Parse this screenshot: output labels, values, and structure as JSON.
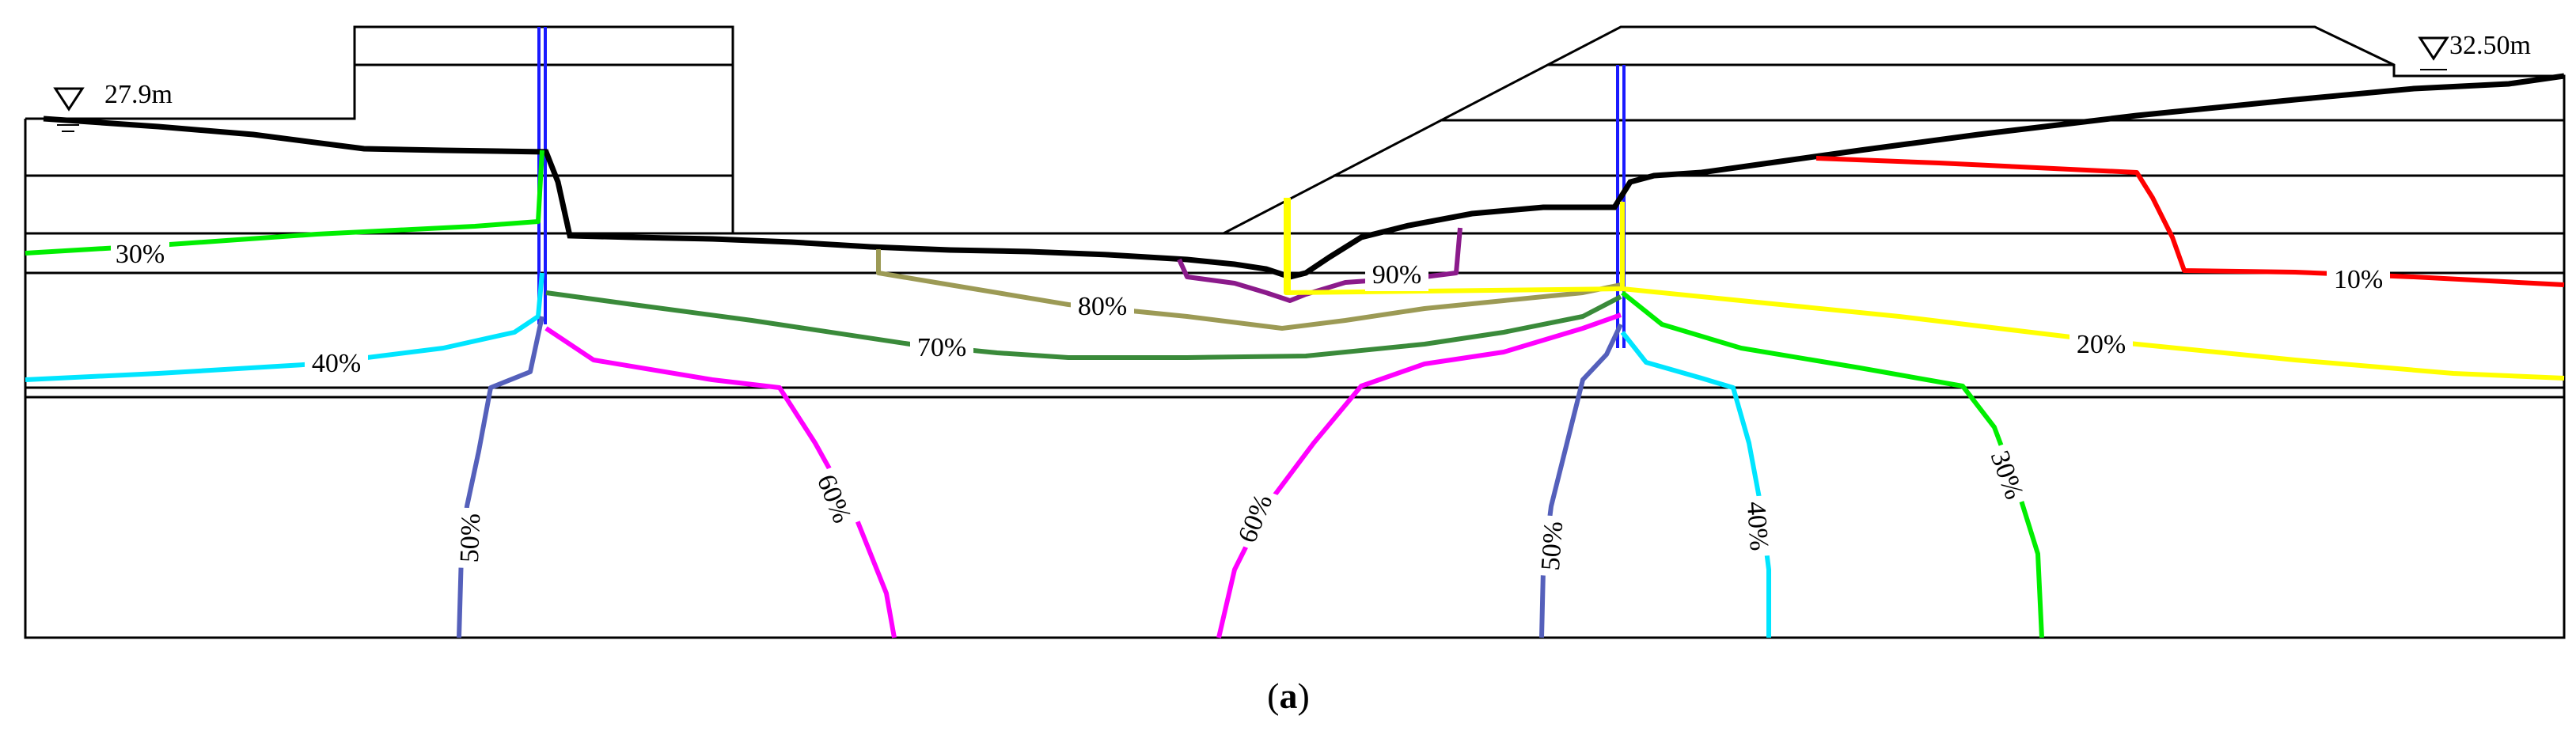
{
  "water_levels": {
    "left": "27.9m",
    "right": "32.50m"
  },
  "contours": [
    {
      "id": "c30-left",
      "label": "30%",
      "color": "#00ee00"
    },
    {
      "id": "c40-left",
      "label": "40%",
      "color": "#00e5ff"
    },
    {
      "id": "c50-left",
      "label": "50%",
      "color": "#5560bb"
    },
    {
      "id": "c60-left",
      "label": "60%",
      "color": "#ff00ff"
    },
    {
      "id": "c70",
      "label": "70%",
      "color": "#3a8a3a"
    },
    {
      "id": "c80",
      "label": "80%",
      "color": "#9c9a55"
    },
    {
      "id": "c90",
      "label": "90%",
      "color": "#8b1a8b"
    },
    {
      "id": "c60-right",
      "label": "60%",
      "color": "#ff00ff"
    },
    {
      "id": "c50-right",
      "label": "50%",
      "color": "#5560bb"
    },
    {
      "id": "c40-right",
      "label": "40%",
      "color": "#00e5ff"
    },
    {
      "id": "c30-right",
      "label": "30%",
      "color": "#00ee00"
    },
    {
      "id": "c20",
      "label": "20%",
      "color": "#ffff00"
    },
    {
      "id": "c10",
      "label": "10%",
      "color": "#ff0000"
    }
  ],
  "caption": {
    "open": "(",
    "letter": "a",
    "close": ")"
  }
}
